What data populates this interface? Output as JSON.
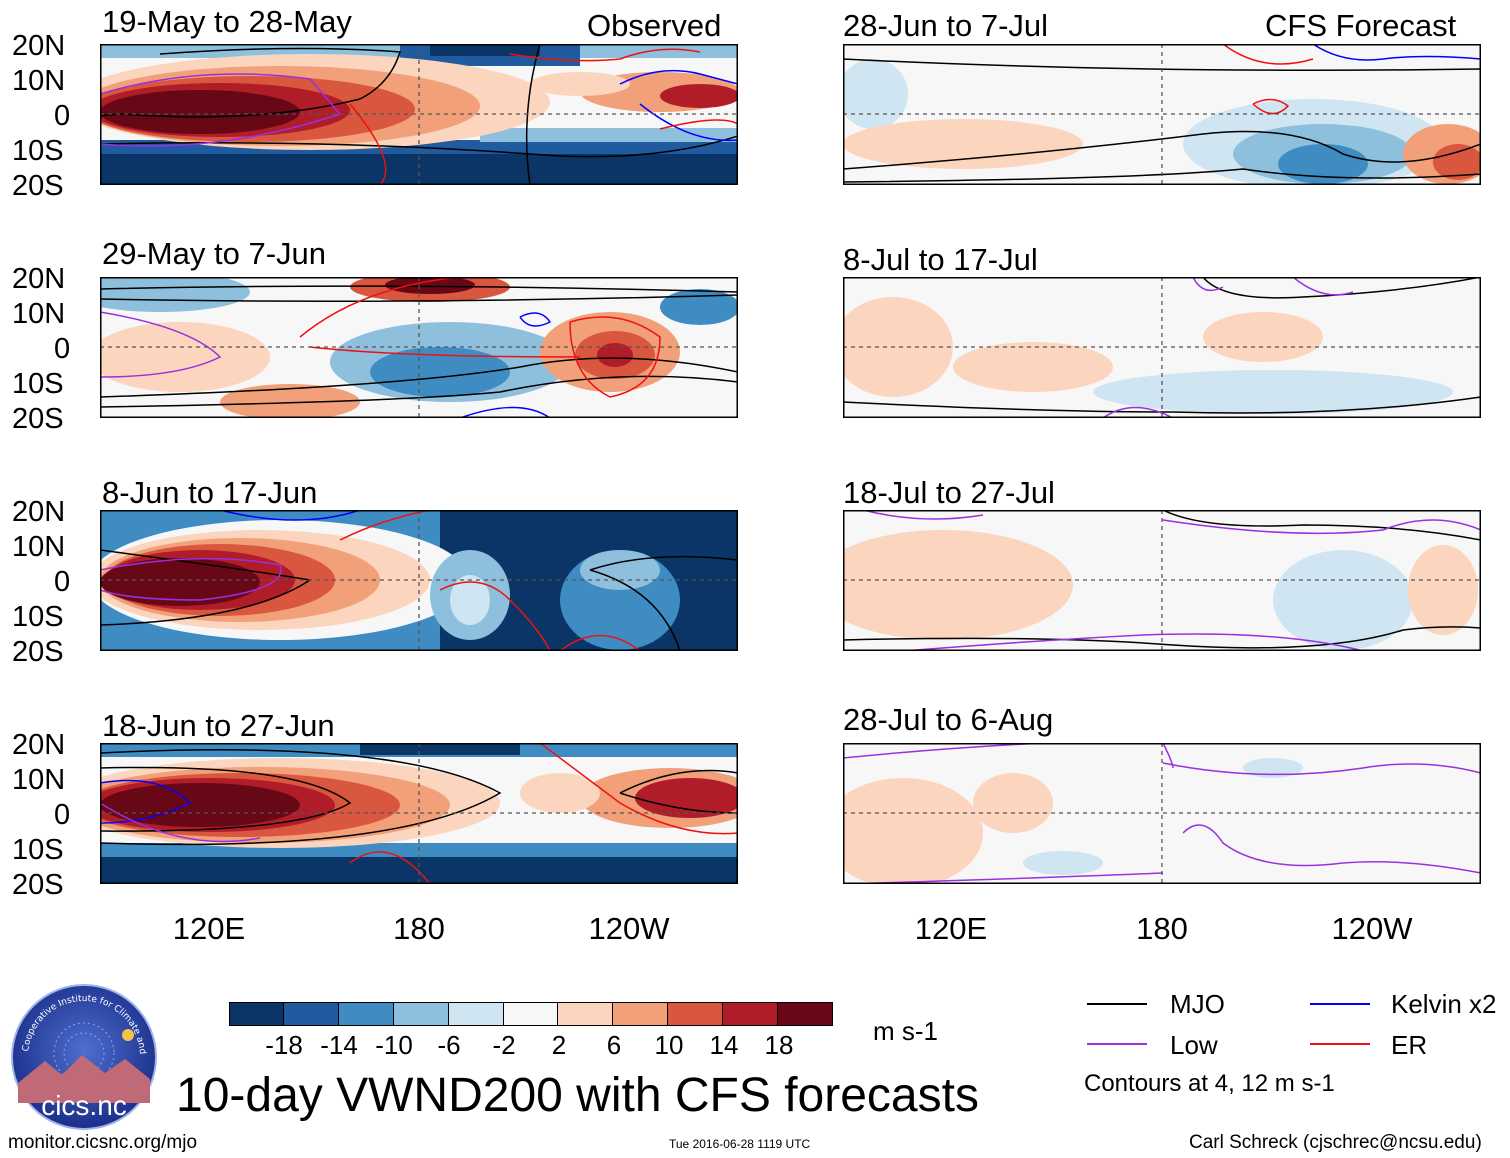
{
  "figure_title": "10-day VWND200 with CFS forecasts",
  "observed_tag": "Observed",
  "forecast_tag": "CFS Forecast",
  "y_axis_labels": [
    "20N",
    "10N",
    "0",
    "10S",
    "20S"
  ],
  "x_axis_labels": [
    "120E",
    "180",
    "120W"
  ],
  "units": "m s-1",
  "colorbar": {
    "ticks": [
      "-18",
      "-14",
      "-10",
      "-6",
      "-2",
      "2",
      "6",
      "10",
      "14",
      "18"
    ],
    "colors": [
      "#0a3566",
      "#1f5b9e",
      "#3f8cc3",
      "#8ec0dd",
      "#cfe5f2",
      "#f7f7f7",
      "#fbd5bd",
      "#f2a07a",
      "#d9573f",
      "#b01d28",
      "#680817"
    ]
  },
  "legend": {
    "items": [
      {
        "label": "MJO",
        "color": "#000000"
      },
      {
        "label": "Kelvin x2",
        "color": "#0000ff"
      },
      {
        "label": "Low",
        "color": "#9a30e0"
      },
      {
        "label": "ER",
        "color": "#ee1111"
      }
    ],
    "note": "Contours at 4, 12 m s-1"
  },
  "logo_text": "cics.nc",
  "logo_ring_text": "Cooperative Institute for Climate and Satellites",
  "footer": {
    "website": "monitor.cicsnc.org/mjo",
    "timestamp": "Tue 2016-06-28 1119 UTC",
    "author": "Carl Schreck (cjschrec@ncsu.edu)"
  },
  "panels_observed": [
    {
      "title": "19-May to 28-May"
    },
    {
      "title": "29-May to 7-Jun"
    },
    {
      "title": "8-Jun to 17-Jun"
    },
    {
      "title": "18-Jun to 27-Jun"
    }
  ],
  "panels_forecast": [
    {
      "title": "28-Jun to 7-Jul"
    },
    {
      "title": "8-Jul to 17-Jul"
    },
    {
      "title": "18-Jul to 27-Jul"
    },
    {
      "title": "28-Jul to 6-Aug"
    }
  ],
  "chart_data": {
    "type": "heatmap",
    "variable": "200-hPa meridional wind anomaly (VWND200), 10-day means",
    "x_range_deg_lon": [
      90,
      270
    ],
    "y_range_deg_lat": [
      -20,
      20
    ],
    "x_ticks": [
      "120E",
      "180",
      "120W"
    ],
    "y_ticks": [
      "20N",
      "10N",
      "0",
      "10S",
      "20S"
    ],
    "color_levels": [
      -18,
      -14,
      -10,
      -6,
      -2,
      2,
      6,
      10,
      14,
      18
    ],
    "contours": [
      "MJO",
      "Kelvin x2",
      "Low",
      "ER"
    ],
    "contour_levels": [
      4,
      12
    ],
    "panels": [
      {
        "title": "19-May to 28-May",
        "kind": "Observed"
      },
      {
        "title": "29-May to 7-Jun",
        "kind": "Observed"
      },
      {
        "title": "8-Jun to 17-Jun",
        "kind": "Observed"
      },
      {
        "title": "18-Jun to 27-Jun",
        "kind": "Observed"
      },
      {
        "title": "28-Jun to 7-Jul",
        "kind": "CFS Forecast"
      },
      {
        "title": "8-Jul to 17-Jul",
        "kind": "CFS Forecast"
      },
      {
        "title": "18-Jul to 27-Jul",
        "kind": "CFS Forecast"
      },
      {
        "title": "28-Jul to 6-Aug",
        "kind": "CFS Forecast"
      }
    ]
  }
}
